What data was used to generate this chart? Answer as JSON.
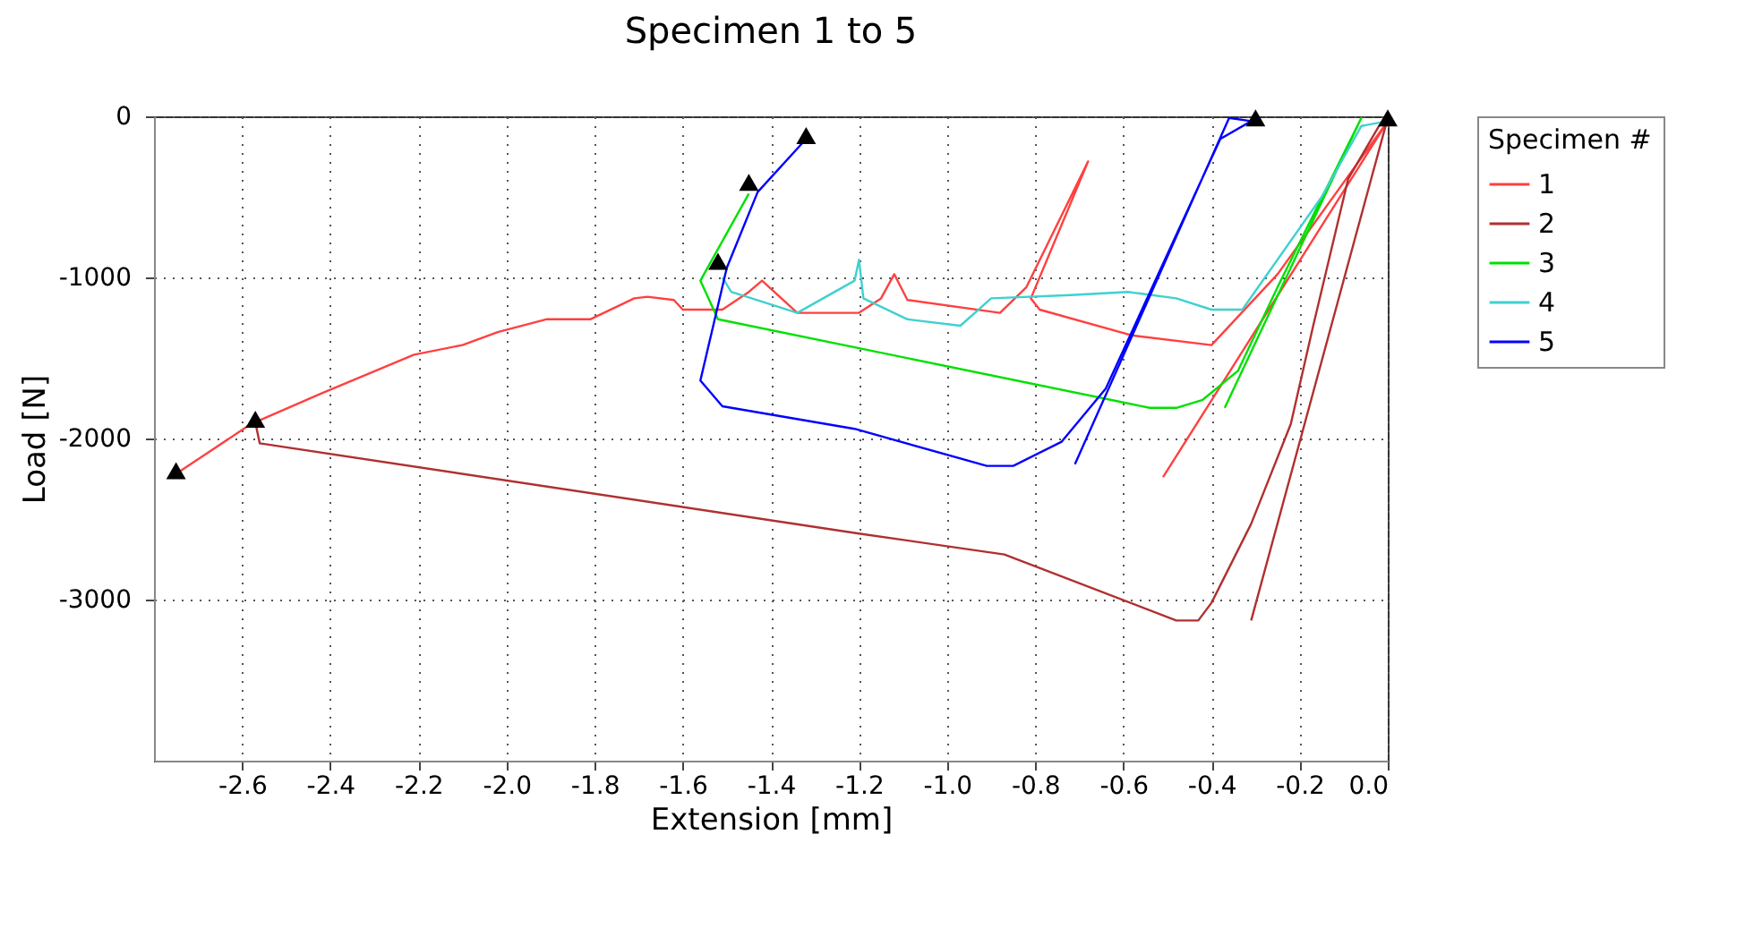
{
  "chart_data": {
    "type": "line",
    "title": "Specimen 1 to 5",
    "xlabel": "Extension [mm]",
    "ylabel": "Load [N]",
    "legend_title": "Specimen #",
    "xlim": [
      -2.8,
      0.0
    ],
    "ylim": [
      -4000,
      0
    ],
    "xticks": [
      -2.6,
      -2.4,
      -2.2,
      {
        "value": -2,
        "label": "-2.0"
      },
      -1.8,
      -1.6,
      -1.4,
      -1.2,
      {
        "value": -1,
        "label": "-1.0"
      },
      -0.8,
      -0.6,
      -0.4,
      -0.2,
      {
        "value": 0,
        "label": "0.0"
      }
    ],
    "yticks": [
      -3000,
      -2000,
      -1000,
      0
    ],
    "grid": true,
    "legend": "right",
    "line_style": "solid",
    "series": [
      {
        "name": "1",
        "color": "#ff4040",
        "x": [
          -0.51,
          0.0,
          -0.25,
          -0.4,
          -0.58,
          -0.79,
          -0.81,
          -0.68,
          -0.82,
          -0.88,
          -1.09,
          -1.12,
          -1.15,
          -1.2,
          -1.34,
          -1.42,
          -1.45,
          -1.51,
          -1.6,
          -1.62,
          -1.68,
          -1.71,
          -1.81,
          -1.91,
          -2.02,
          -2.1,
          -2.21,
          -2.42,
          -2.58,
          -2.75
        ],
        "values": [
          -2240,
          -30,
          -980,
          -1420,
          -1360,
          -1200,
          -1130,
          -280,
          -1060,
          -1220,
          -1140,
          -980,
          -1130,
          -1220,
          -1220,
          -1020,
          -1090,
          -1200,
          -1200,
          -1140,
          -1120,
          -1130,
          -1260,
          -1260,
          -1340,
          -1420,
          -1480,
          -1720,
          -1910,
          -2220
        ]
      },
      {
        "name": "2",
        "color": "#b03030",
        "x": [
          -0.31,
          0.0,
          -0.02,
          -0.09,
          -0.17,
          -0.22,
          -0.31,
          -0.4,
          -0.43,
          -0.48,
          -0.87,
          -1.2,
          -2.56,
          -2.57
        ],
        "values": [
          -3130,
          -10,
          -60,
          -390,
          -1310,
          -1910,
          -2530,
          -3020,
          -3130,
          -3130,
          -2720,
          -2590,
          -2030,
          -1900
        ]
      },
      {
        "name": "3",
        "color": "#00e000",
        "x": [
          -0.37,
          -0.06,
          -0.25,
          -0.34,
          -0.42,
          -0.48,
          -0.54,
          -1.52,
          -1.56,
          -1.45
        ],
        "values": [
          -1810,
          -10,
          -1060,
          -1580,
          -1760,
          -1810,
          -1810,
          -1260,
          -1020,
          -480
        ]
      },
      {
        "name": "4",
        "color": "#40d0d0",
        "x": [
          0.0,
          -0.06,
          -0.15,
          -0.33,
          -0.4,
          -0.48,
          -0.59,
          -0.72,
          -0.9,
          -0.97,
          -1.09,
          -1.19,
          -1.2,
          -1.21,
          -1.34,
          -1.49,
          -1.51
        ],
        "values": [
          -30,
          -60,
          -500,
          -1200,
          -1200,
          -1130,
          -1090,
          -1110,
          -1130,
          -1300,
          -1260,
          -1130,
          -890,
          -1020,
          -1220,
          -1090,
          -1000
        ]
      },
      {
        "name": "5",
        "color": "#0000ff",
        "x": [
          -0.71,
          -0.36,
          -0.31,
          -0.38,
          -0.64,
          -0.74,
          -0.85,
          -0.91,
          -1.21,
          -1.51,
          -1.56,
          -1.5,
          -1.43,
          -1.32
        ],
        "values": [
          -2160,
          -10,
          -30,
          -140,
          -1690,
          -2020,
          -2170,
          -2170,
          -1940,
          -1800,
          -1640,
          -940,
          -470,
          -140
        ]
      },
      {
        "type": "scatter",
        "marker": "triangle",
        "color": "#000000",
        "x": [
          -2.75,
          -2.57,
          -1.52,
          -1.45,
          -1.32,
          -0.3,
          0.0
        ],
        "values": [
          -2200,
          -1880,
          -900,
          -410,
          -120,
          -10,
          -10
        ]
      }
    ]
  }
}
